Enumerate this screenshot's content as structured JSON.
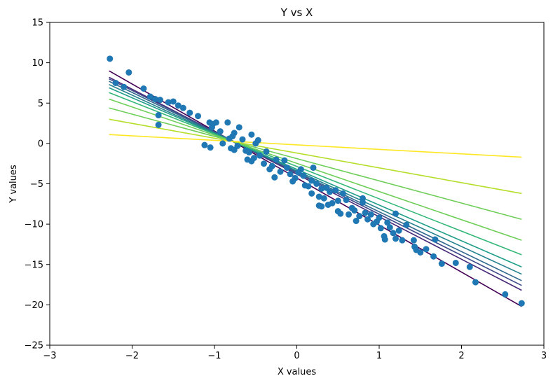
{
  "chart_data": {
    "type": "scatter",
    "title": "Y vs X",
    "xlabel": "X values",
    "ylabel": "Y values",
    "xlim": [
      -3,
      3
    ],
    "ylim": [
      -25,
      15
    ],
    "xticks": [
      -3,
      -2,
      -1,
      0,
      1,
      2,
      3
    ],
    "yticks": [
      -25,
      -20,
      -15,
      -10,
      -5,
      0,
      5,
      10,
      15
    ],
    "grid": false,
    "colors": {
      "points": "#1f77b4"
    },
    "points": [
      [
        -2.27,
        10.5
      ],
      [
        -2.04,
        8.8
      ],
      [
        -2.2,
        7.5
      ],
      [
        -2.1,
        7.0
      ],
      [
        -1.86,
        6.8
      ],
      [
        -1.78,
        5.8
      ],
      [
        -1.72,
        5.5
      ],
      [
        -1.66,
        5.4
      ],
      [
        -1.56,
        5.1
      ],
      [
        -1.5,
        5.2
      ],
      [
        -1.44,
        4.7
      ],
      [
        -1.38,
        4.4
      ],
      [
        -1.3,
        3.8
      ],
      [
        -1.2,
        3.4
      ],
      [
        -1.68,
        3.5
      ],
      [
        -1.68,
        2.3
      ],
      [
        -1.12,
        -0.2
      ],
      [
        -1.05,
        -0.5
      ],
      [
        -1.06,
        2.6
      ],
      [
        -1.02,
        2.4
      ],
      [
        -0.98,
        2.6
      ],
      [
        -1.03,
        2.0
      ],
      [
        -0.93,
        1.5
      ],
      [
        -0.84,
        2.6
      ],
      [
        -0.9,
        0.0
      ],
      [
        -0.82,
        0.6
      ],
      [
        -0.78,
        0.9
      ],
      [
        -0.76,
        1.3
      ],
      [
        -0.7,
        2.0
      ],
      [
        -0.8,
        -0.6
      ],
      [
        -0.76,
        -0.8
      ],
      [
        -0.72,
        -0.3
      ],
      [
        -0.66,
        0.5
      ],
      [
        -0.62,
        -0.9
      ],
      [
        -0.58,
        -1.1
      ],
      [
        -0.55,
        1.1
      ],
      [
        -0.5,
        0.0
      ],
      [
        -0.47,
        0.4
      ],
      [
        -0.6,
        -2.0
      ],
      [
        -0.55,
        -2.2
      ],
      [
        -0.52,
        -1.8
      ],
      [
        -0.45,
        -1.5
      ],
      [
        -0.4,
        -2.5
      ],
      [
        -0.37,
        -1.0
      ],
      [
        -0.33,
        -3.2
      ],
      [
        -0.3,
        -2.8
      ],
      [
        -0.27,
        -4.2
      ],
      [
        -0.25,
        -2.0
      ],
      [
        -0.2,
        -3.5
      ],
      [
        -0.15,
        -2.1
      ],
      [
        -0.12,
        -3.0
      ],
      [
        -0.08,
        -3.8
      ],
      [
        -0.05,
        -4.7
      ],
      [
        -0.02,
        -4.3
      ],
      [
        0.02,
        -3.6
      ],
      [
        0.05,
        -3.2
      ],
      [
        0.08,
        -4.0
      ],
      [
        0.1,
        -5.2
      ],
      [
        0.14,
        -5.3
      ],
      [
        0.18,
        -4.6
      ],
      [
        0.18,
        -6.2
      ],
      [
        0.2,
        -3.0
      ],
      [
        0.24,
        -5.0
      ],
      [
        0.27,
        -6.6
      ],
      [
        0.3,
        -5.6
      ],
      [
        0.3,
        -7.8
      ],
      [
        0.27,
        -7.7
      ],
      [
        0.33,
        -6.8
      ],
      [
        0.36,
        -5.5
      ],
      [
        0.38,
        -7.6
      ],
      [
        0.4,
        -6.0
      ],
      [
        0.43,
        -7.4
      ],
      [
        0.47,
        -5.8
      ],
      [
        0.5,
        -8.4
      ],
      [
        0.5,
        -7.1
      ],
      [
        0.53,
        -8.7
      ],
      [
        0.56,
        -6.2
      ],
      [
        0.6,
        -7.0
      ],
      [
        0.63,
        -8.8
      ],
      [
        0.67,
        -8.0
      ],
      [
        0.7,
        -8.3
      ],
      [
        0.72,
        -9.6
      ],
      [
        0.76,
        -9.0
      ],
      [
        0.8,
        -7.3
      ],
      [
        0.8,
        -6.8
      ],
      [
        0.83,
        -8.6
      ],
      [
        0.86,
        -9.4
      ],
      [
        0.9,
        -8.8
      ],
      [
        0.93,
        -10.0
      ],
      [
        0.97,
        -9.7
      ],
      [
        1.0,
        -9.2
      ],
      [
        1.02,
        -10.5
      ],
      [
        1.06,
        -11.5
      ],
      [
        1.07,
        -11.9
      ],
      [
        1.1,
        -9.8
      ],
      [
        1.13,
        -10.4
      ],
      [
        1.17,
        -11.1
      ],
      [
        1.2,
        -11.8
      ],
      [
        1.2,
        -8.7
      ],
      [
        1.24,
        -10.8
      ],
      [
        1.28,
        -12.0
      ],
      [
        1.33,
        -10.1
      ],
      [
        1.42,
        -12.0
      ],
      [
        1.43,
        -12.8
      ],
      [
        1.45,
        -13.2
      ],
      [
        1.5,
        -13.5
      ],
      [
        1.57,
        -13.1
      ],
      [
        1.68,
        -11.9
      ],
      [
        1.66,
        -14.0
      ],
      [
        1.76,
        -14.9
      ],
      [
        1.93,
        -14.8
      ],
      [
        2.1,
        -15.3
      ],
      [
        2.17,
        -17.2
      ],
      [
        2.53,
        -18.7
      ],
      [
        2.73,
        -19.8
      ]
    ],
    "lines": [
      {
        "color": "#440154",
        "x": [
          -2.28,
          2.73
        ],
        "y": [
          9.0,
          -20.2
        ]
      },
      {
        "color": "#482878",
        "x": [
          -2.28,
          2.73
        ],
        "y": [
          8.2,
          -18.2
        ]
      },
      {
        "color": "#3e4989",
        "x": [
          -2.28,
          2.73
        ],
        "y": [
          8.0,
          -17.6
        ]
      },
      {
        "color": "#31688e",
        "x": [
          -2.28,
          2.73
        ],
        "y": [
          7.7,
          -17.0
        ]
      },
      {
        "color": "#26828e",
        "x": [
          -2.28,
          2.73
        ],
        "y": [
          7.3,
          -16.2
        ]
      },
      {
        "color": "#1f9e89",
        "x": [
          -2.28,
          2.73
        ],
        "y": [
          6.9,
          -15.3
        ]
      },
      {
        "color": "#35b779",
        "x": [
          -2.28,
          2.73
        ],
        "y": [
          6.3,
          -13.8
        ]
      },
      {
        "color": "#6ece58",
        "x": [
          -2.28,
          2.73
        ],
        "y": [
          5.5,
          -12.0
        ]
      },
      {
        "color": "#6ece58",
        "x": [
          -2.28,
          2.73
        ],
        "y": [
          4.4,
          -9.4
        ]
      },
      {
        "color": "#b5de2b",
        "x": [
          -2.28,
          2.73
        ],
        "y": [
          3.0,
          -6.2
        ]
      },
      {
        "color": "#fde725",
        "x": [
          -2.28,
          2.73
        ],
        "y": [
          1.1,
          -1.7
        ]
      }
    ]
  }
}
